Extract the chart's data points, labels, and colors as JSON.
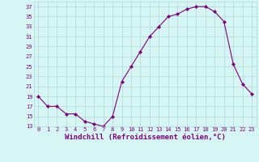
{
  "x": [
    0,
    1,
    2,
    3,
    4,
    5,
    6,
    7,
    8,
    9,
    10,
    11,
    12,
    13,
    14,
    15,
    16,
    17,
    18,
    19,
    20,
    21,
    22,
    23
  ],
  "y": [
    19,
    17,
    17,
    15.5,
    15.5,
    14,
    13.5,
    13,
    15,
    22,
    25,
    28,
    31,
    33,
    35,
    35.5,
    36.5,
    37,
    37,
    36,
    34,
    25.5,
    21.5,
    19.5
  ],
  "line_color": "#800080",
  "marker": "D",
  "marker_size": 2,
  "bg_color": "#d6f5f5",
  "grid_color": "#b0d8d8",
  "xlabel": "Windchill (Refroidissement éolien,°C)",
  "xlabel_color": "#800080",
  "ylim": [
    13,
    38
  ],
  "yticks": [
    13,
    15,
    17,
    19,
    21,
    23,
    25,
    27,
    29,
    31,
    33,
    35,
    37
  ],
  "xlim": [
    -0.5,
    23.5
  ],
  "xticks": [
    0,
    1,
    2,
    3,
    4,
    5,
    6,
    7,
    8,
    9,
    10,
    11,
    12,
    13,
    14,
    15,
    16,
    17,
    18,
    19,
    20,
    21,
    22,
    23
  ],
  "tick_label_fontsize": 5,
  "xlabel_fontsize": 6.5
}
